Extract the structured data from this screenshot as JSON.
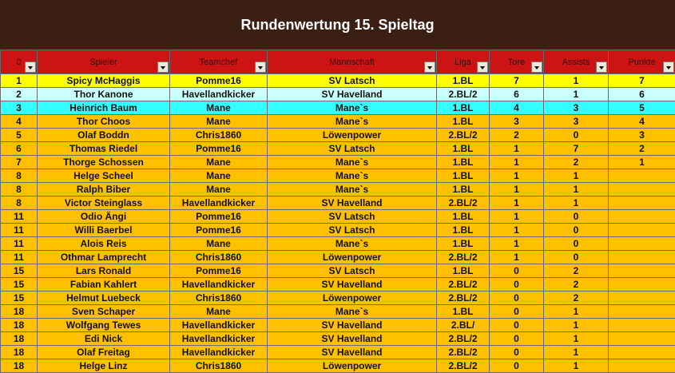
{
  "title": "Rundenwertung 15. Spieltag",
  "colors": {
    "title_bg": "#3b1f12",
    "header_bg": "#cc1414",
    "row_default": "#ffc000",
    "row_first": "#ffff00",
    "row_second": "#ccffff",
    "row_third": "#33ffff"
  },
  "headers": [
    "0",
    "Spieler",
    "Teamchef",
    "Mannschaft",
    "Liga",
    "Tore",
    "Assists",
    "Punkte"
  ],
  "rows": [
    [
      "1",
      "Spicy McHaggis",
      "Pomme16",
      "SV Latsch",
      "1.BL",
      "7",
      "1",
      "7"
    ],
    [
      "2",
      "Thor Kanone",
      "Havellandkicker",
      "SV Havelland",
      "2.BL/2",
      "6",
      "1",
      "6"
    ],
    [
      "3",
      "Heinrich Baum",
      "Mane",
      "Mane`s",
      "1.BL",
      "4",
      "3",
      "5"
    ],
    [
      "4",
      "Thor Choos",
      "Mane",
      "Mane`s",
      "1.BL",
      "3",
      "3",
      "4"
    ],
    [
      "5",
      "Olaf Boddn",
      "Chris1860",
      "Löwenpower",
      "2.BL/2",
      "2",
      "0",
      "3"
    ],
    [
      "6",
      "Thomas Riedel",
      "Pomme16",
      "SV Latsch",
      "1.BL",
      "1",
      "7",
      "2"
    ],
    [
      "7",
      "Thorge Schossen",
      "Mane",
      "Mane`s",
      "1.BL",
      "1",
      "2",
      "1"
    ],
    [
      "8",
      "Helge Scheel",
      "Mane",
      "Mane`s",
      "1.BL",
      "1",
      "1",
      ""
    ],
    [
      "8",
      "Ralph Biber",
      "Mane",
      "Mane`s",
      "1.BL",
      "1",
      "1",
      ""
    ],
    [
      "8",
      "Victor Steinglass",
      "Havellandkicker",
      "SV Havelland",
      "2.BL/2",
      "1",
      "1",
      ""
    ],
    [
      "11",
      "Odio Ängi",
      "Pomme16",
      "SV Latsch",
      "1.BL",
      "1",
      "0",
      ""
    ],
    [
      "11",
      "Willi Baerbel",
      "Pomme16",
      "SV Latsch",
      "1.BL",
      "1",
      "0",
      ""
    ],
    [
      "11",
      "Alois Reis",
      "Mane",
      "Mane`s",
      "1.BL",
      "1",
      "0",
      ""
    ],
    [
      "11",
      "Othmar Lamprecht",
      "Chris1860",
      "Löwenpower",
      "2.BL/2",
      "1",
      "0",
      ""
    ],
    [
      "15",
      "Lars Ronald",
      "Pomme16",
      "SV Latsch",
      "1.BL",
      "0",
      "2",
      ""
    ],
    [
      "15",
      "Fabian Kahlert",
      "Havellandkicker",
      "SV Havelland",
      "2.BL/2",
      "0",
      "2",
      ""
    ],
    [
      "15",
      "Helmut Luebeck",
      "Chris1860",
      "Löwenpower",
      "2.BL/2",
      "0",
      "2",
      ""
    ],
    [
      "18",
      "Sven Schaper",
      "Mane",
      "Mane`s",
      "1.BL",
      "0",
      "1",
      ""
    ],
    [
      "18",
      "Wolfgang Tewes",
      "Havellandkicker",
      "SV Havelland",
      "2.BL/",
      "0",
      "1",
      ""
    ],
    [
      "18",
      "Edi Nick",
      "Havellandkicker",
      "SV Havelland",
      "2.BL/2",
      "0",
      "1",
      ""
    ],
    [
      "18",
      "Olaf Freitag",
      "Havellandkicker",
      "SV Havelland",
      "2.BL/2",
      "0",
      "1",
      ""
    ],
    [
      "18",
      "Helge Linz",
      "Chris1860",
      "Löwenpower",
      "2.BL/2",
      "0",
      "1",
      ""
    ]
  ]
}
